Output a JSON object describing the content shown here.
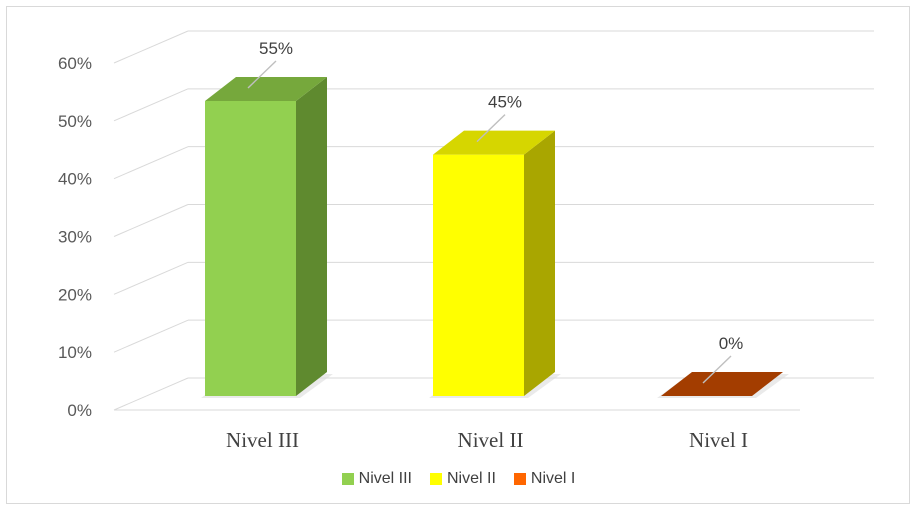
{
  "chart_data": {
    "type": "bar",
    "title": "",
    "xlabel": "",
    "ylabel": "",
    "ylim": [
      0,
      60
    ],
    "y_ticks": [
      "0%",
      "10%",
      "20%",
      "30%",
      "40%",
      "50%",
      "60%"
    ],
    "y_tick_values": [
      0,
      10,
      20,
      30,
      40,
      50,
      60
    ],
    "categories": [
      "Nivel III",
      "Nivel II",
      "Nivel I"
    ],
    "values": [
      55,
      45,
      0
    ],
    "data_labels": [
      "55%",
      "45%",
      "0%"
    ],
    "grid": true,
    "style": "3d-column",
    "legend_position": "bottom",
    "series_colors": {
      "front": [
        "#92d050",
        "#ffff00",
        "#a33d00"
      ],
      "top": [
        "#76a83c",
        "#d6d600",
        "#843c0c"
      ],
      "side": [
        "#5f8a2f",
        "#a9a600",
        "#7a3200"
      ],
      "legend": [
        "#92d050",
        "#ffff00",
        "#ff6600"
      ]
    },
    "legend": [
      "Nivel III",
      "Nivel II",
      "Nivel I"
    ]
  }
}
